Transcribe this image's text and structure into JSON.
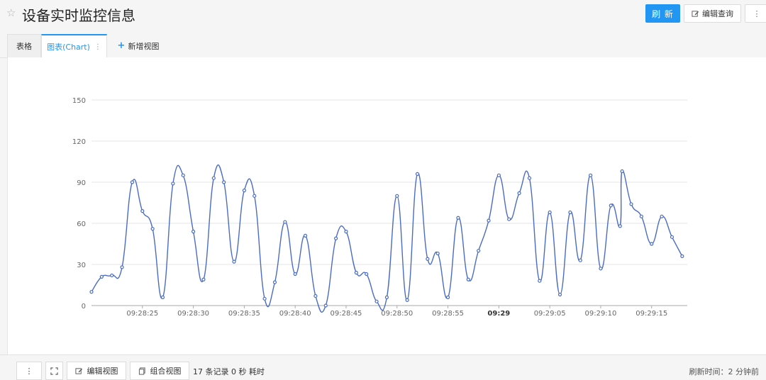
{
  "header": {
    "title": "设备实时监控信息",
    "refresh_label": "刷 新",
    "edit_query_label": "编辑查询",
    "more_label": "⋮"
  },
  "tabs": [
    {
      "label": "表格"
    },
    {
      "label": "图表(Chart)"
    },
    {
      "label": "新增视图"
    }
  ],
  "footer": {
    "edit_view_label": "编辑视图",
    "combine_view_label": "组合视图",
    "records_text": "17 条记录 0 秒 耗时",
    "refresh_time_text": "刷新时间：2 分钟前"
  },
  "colors": {
    "accent": "#2196f3",
    "series": "#4a6cc2"
  },
  "chart_data": {
    "type": "line",
    "title": "",
    "xlabel": "",
    "ylabel": "",
    "ylim": [
      0,
      150
    ],
    "yticks": [
      0,
      30,
      60,
      90,
      120,
      150
    ],
    "grid": true,
    "xticks": [
      "09:28:25",
      "09:28:30",
      "09:28:35",
      "09:28:40",
      "09:28:45",
      "09:28:50",
      "09:28:55",
      "09:29",
      "09:29:05",
      "09:29:10",
      "09:29:15"
    ],
    "x_tick_seconds": [
      25,
      30,
      35,
      40,
      45,
      50,
      55,
      60,
      65,
      70,
      75
    ],
    "bold_tick": "09:29",
    "series": [
      {
        "x": [
          20,
          21,
          22,
          23,
          24,
          25,
          26,
          27,
          28,
          29,
          30,
          31,
          32,
          33,
          34,
          35,
          36,
          37,
          38,
          39,
          40,
          41,
          42,
          43,
          44,
          45,
          46,
          47,
          48,
          49,
          50,
          51,
          52,
          53,
          54,
          55,
          56,
          57,
          58,
          59,
          60,
          61,
          62,
          63,
          64,
          65,
          66,
          67,
          68,
          69,
          70,
          71,
          71.9,
          72.1,
          73,
          74,
          75,
          76,
          77,
          78
        ],
        "y": [
          10,
          21,
          22,
          28,
          90,
          69,
          56,
          6,
          89,
          95,
          54,
          19,
          93,
          90,
          32,
          84,
          80,
          5,
          17,
          61,
          23,
          51,
          7,
          0,
          49,
          54,
          24,
          23,
          3,
          6,
          80,
          4,
          96,
          34,
          38,
          6,
          64,
          19,
          40,
          62,
          95,
          63,
          82,
          93,
          18,
          68,
          8,
          68,
          33,
          95,
          27,
          73,
          58,
          98,
          74,
          65,
          45,
          65,
          50,
          36
        ]
      }
    ]
  }
}
